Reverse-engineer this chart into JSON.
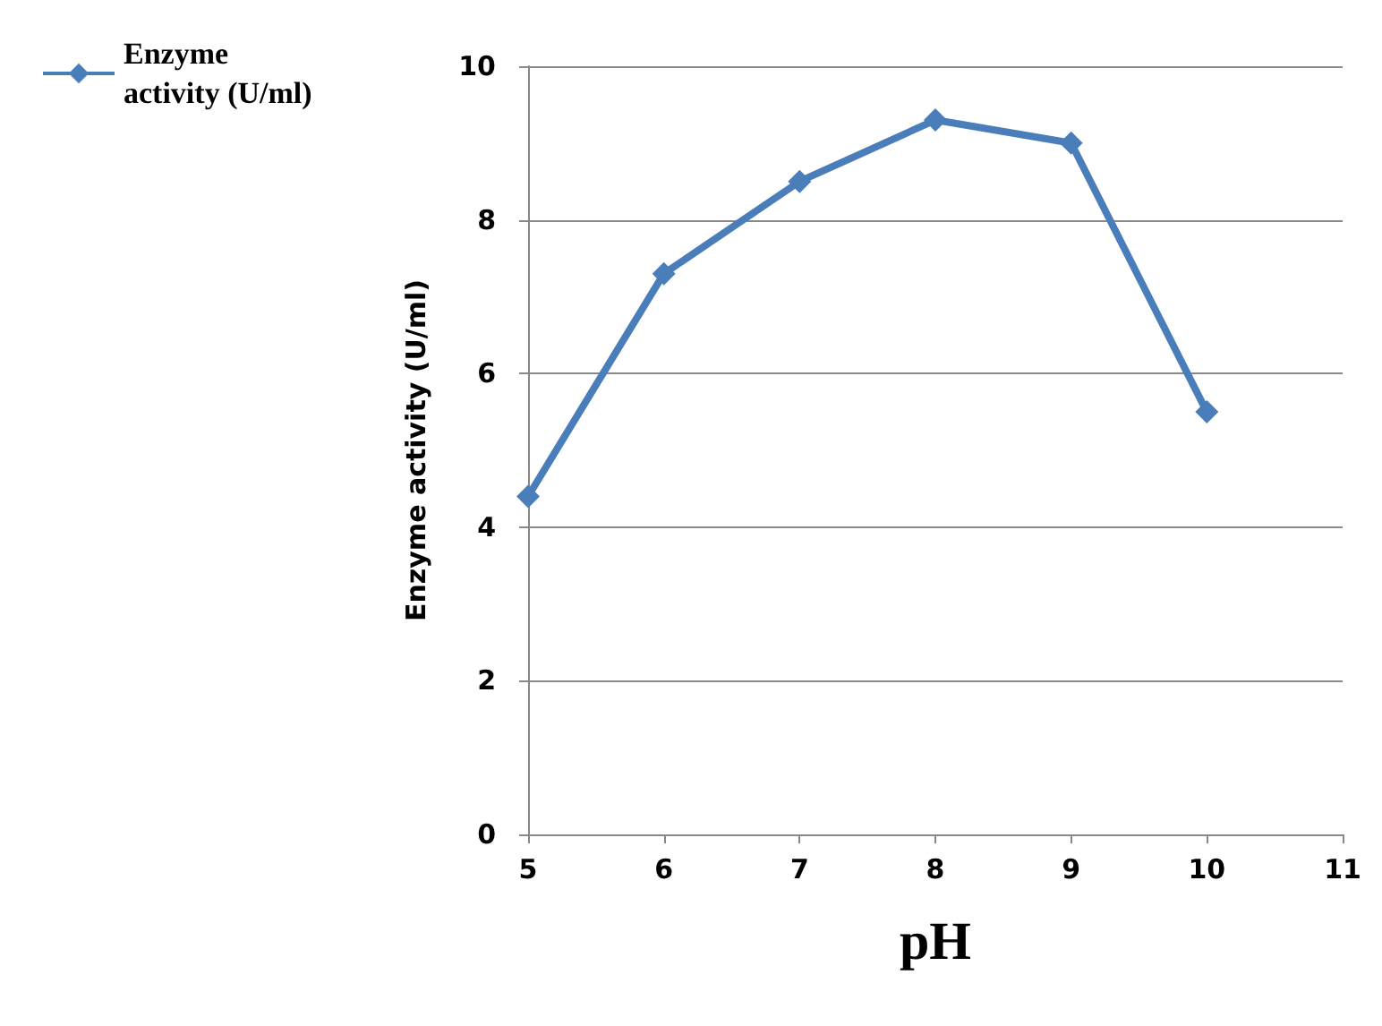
{
  "chart_data": {
    "type": "line",
    "xlabel": "pH",
    "ylabel": "Enzyme activity (U/ml)",
    "x": [
      5,
      6,
      7,
      8,
      9,
      10
    ],
    "series": [
      {
        "name": "Enzyme activity (U/ml)",
        "color": "#4a7ebb",
        "values": [
          4.4,
          7.3,
          8.5,
          9.3,
          9.0,
          5.5
        ]
      }
    ],
    "xlim": [
      5,
      11
    ],
    "xticks": [
      5,
      6,
      7,
      8,
      9,
      10,
      11
    ],
    "ylim": [
      0,
      10
    ],
    "yticks": [
      0,
      2,
      4,
      6,
      8,
      10
    ],
    "grid": "y",
    "legend": "top left",
    "marker": "diamond",
    "line_style": "solid"
  }
}
